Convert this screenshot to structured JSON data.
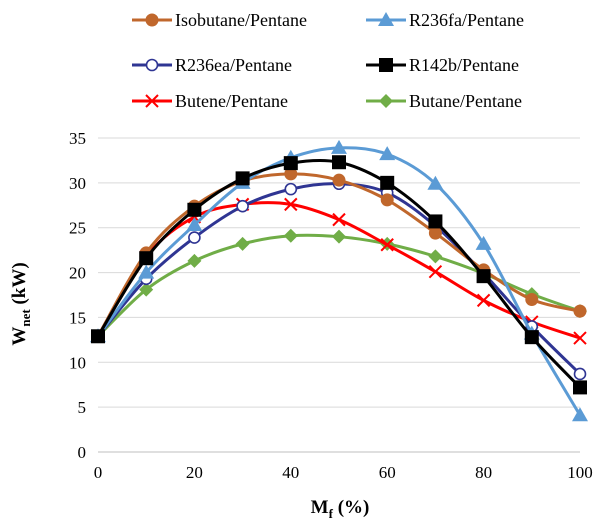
{
  "chart_data": {
    "type": "line",
    "xlabel": {
      "main": "M",
      "sub": "f",
      "rest": " (%)"
    },
    "ylabel": {
      "main": "W",
      "sub": "net",
      "rest": " (kW)"
    },
    "xlim": [
      0,
      100
    ],
    "ylim": [
      0,
      35
    ],
    "xticks": [
      "0",
      "20",
      "40",
      "60",
      "80",
      "100"
    ],
    "yticks": [
      "0",
      "5",
      "10",
      "15",
      "20",
      "25",
      "30",
      "35"
    ],
    "grid": "horizontal",
    "legend_position": "top",
    "x": [
      0,
      10,
      20,
      30,
      40,
      50,
      60,
      70,
      80,
      90,
      100
    ],
    "series": [
      {
        "name": "Isobutane/Pentane",
        "color": "#c0672c",
        "marker": "circle",
        "values": [
          12.9,
          22.2,
          27.4,
          30.2,
          31.0,
          30.3,
          28.1,
          24.4,
          20.3,
          17.0,
          15.7
        ]
      },
      {
        "name": "R236fa/Pentane",
        "color": "#5b9bd5",
        "marker": "triangle",
        "values": [
          12.9,
          20.0,
          25.3,
          30.0,
          32.8,
          33.9,
          33.2,
          29.9,
          23.2,
          13.2,
          4.1
        ]
      },
      {
        "name": "R236ea/Pentane",
        "color": "#2f3593",
        "marker": "circle-open",
        "values": [
          12.9,
          19.3,
          23.9,
          27.4,
          29.3,
          29.9,
          28.9,
          25.2,
          19.9,
          14.0,
          8.7
        ]
      },
      {
        "name": "R142b/Pentane",
        "color": "#000000",
        "marker": "square",
        "values": [
          12.9,
          21.6,
          27.0,
          30.5,
          32.2,
          32.3,
          30.0,
          25.7,
          19.6,
          12.8,
          7.2
        ]
      },
      {
        "name": "Butene/Pentane",
        "color": "#ff0000",
        "marker": "x",
        "values": [
          12.9,
          21.8,
          26.2,
          27.6,
          27.6,
          25.9,
          23.1,
          20.1,
          16.9,
          14.5,
          12.7
        ]
      },
      {
        "name": "Butane/Pentane",
        "color": "#70ad47",
        "marker": "diamond",
        "values": [
          12.9,
          18.1,
          21.3,
          23.2,
          24.1,
          24.0,
          23.2,
          21.8,
          19.9,
          17.6,
          15.7
        ]
      }
    ]
  }
}
